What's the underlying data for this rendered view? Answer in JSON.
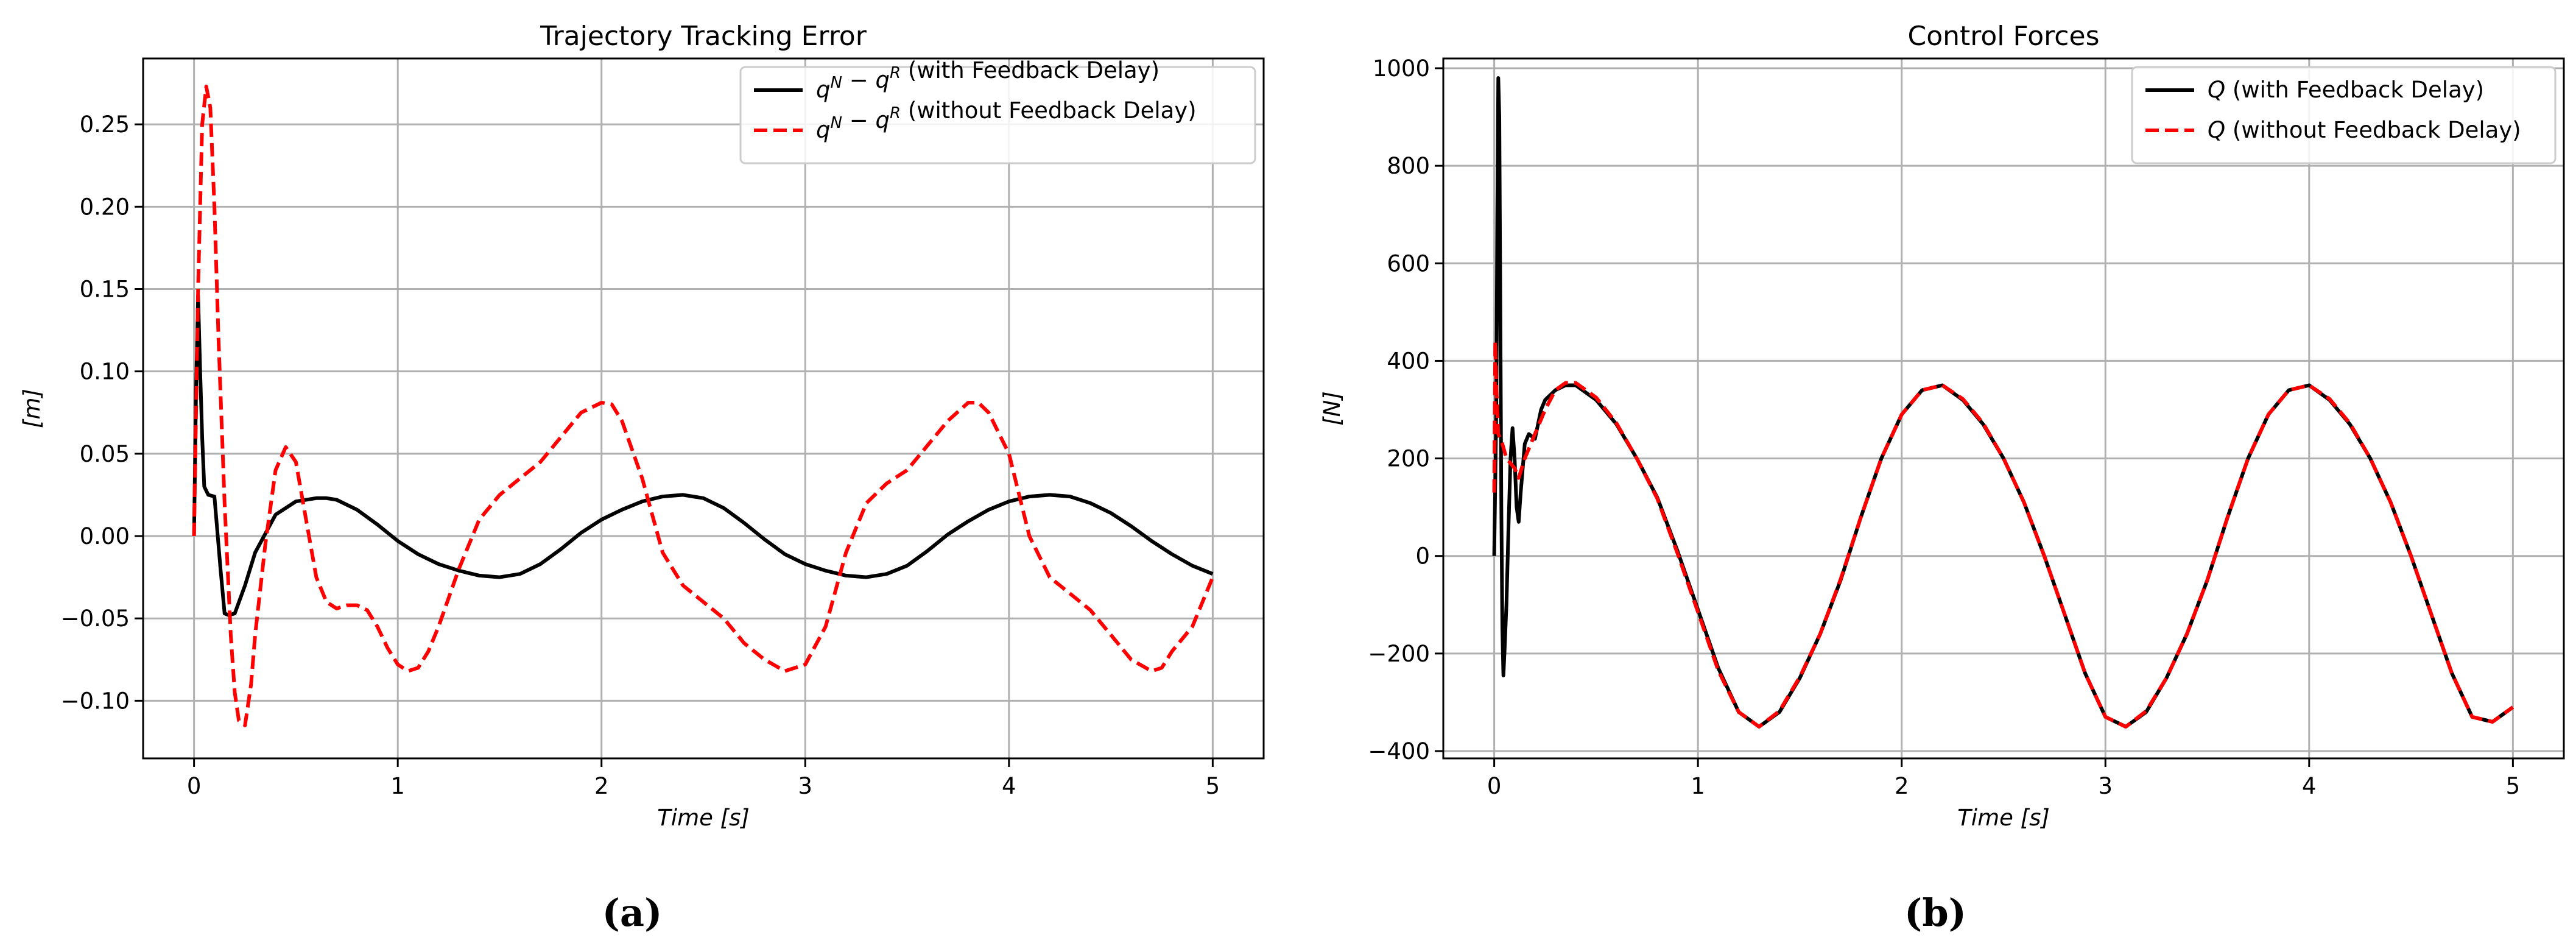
{
  "chart_data": [
    {
      "type": "line",
      "title": "Trajectory Tracking Error",
      "xlabel": "Time [s]",
      "ylabel": "[m]",
      "xlim": [
        -0.25,
        5.25
      ],
      "ylim": [
        -0.135,
        0.29
      ],
      "x_ticks": [
        0,
        1,
        2,
        3,
        4,
        5
      ],
      "x_tick_labels": [
        "0",
        "1",
        "2",
        "3",
        "4",
        "5"
      ],
      "y_ticks": [
        -0.1,
        -0.05,
        0.0,
        0.05,
        0.1,
        0.15,
        0.2,
        0.25
      ],
      "y_tick_labels": [
        "−0.10",
        "−0.05",
        "0.00",
        "0.05",
        "0.10",
        "0.15",
        "0.20",
        "0.25"
      ],
      "grid": true,
      "legend_position": "top-right",
      "caption": "(a)",
      "series": [
        {
          "name": "q^N − q^R (with Feedback Delay)",
          "legend": {
            "q": "q",
            "sup1": "N",
            "minus": " − ",
            "sup2": "R",
            "rest": " (with Feedback Delay)"
          },
          "color": "#000000",
          "dash": "solid",
          "x": [
            0,
            0.01,
            0.02,
            0.03,
            0.04,
            0.05,
            0.07,
            0.1,
            0.13,
            0.15,
            0.17,
            0.2,
            0.25,
            0.3,
            0.4,
            0.5,
            0.6,
            0.65,
            0.7,
            0.8,
            0.9,
            1.0,
            1.1,
            1.2,
            1.3,
            1.4,
            1.5,
            1.6,
            1.7,
            1.8,
            1.9,
            2.0,
            2.1,
            2.2,
            2.3,
            2.4,
            2.5,
            2.6,
            2.7,
            2.8,
            2.9,
            3.0,
            3.1,
            3.2,
            3.3,
            3.4,
            3.5,
            3.6,
            3.7,
            3.8,
            3.9,
            4.0,
            4.1,
            4.2,
            4.3,
            4.4,
            4.5,
            4.6,
            4.7,
            4.8,
            4.9,
            5.0
          ],
          "y": [
            0.0,
            0.09,
            0.146,
            0.1,
            0.06,
            0.03,
            0.025,
            0.024,
            -0.02,
            -0.047,
            -0.048,
            -0.047,
            -0.03,
            -0.01,
            0.013,
            0.021,
            0.023,
            0.023,
            0.022,
            0.016,
            0.007,
            -0.003,
            -0.011,
            -0.017,
            -0.021,
            -0.024,
            -0.025,
            -0.023,
            -0.017,
            -0.008,
            0.002,
            0.01,
            0.016,
            0.021,
            0.024,
            0.025,
            0.023,
            0.017,
            0.008,
            -0.002,
            -0.011,
            -0.017,
            -0.021,
            -0.024,
            -0.025,
            -0.023,
            -0.018,
            -0.009,
            0.001,
            0.009,
            0.016,
            0.021,
            0.024,
            0.025,
            0.024,
            0.02,
            0.014,
            0.006,
            -0.003,
            -0.011,
            -0.018,
            -0.023
          ]
        },
        {
          "name": "q^N − q^R (without Feedback Delay)",
          "legend": {
            "q": "q",
            "sup1": "N",
            "minus": " − ",
            "sup2": "R",
            "rest": " (without Feedback Delay)"
          },
          "color": "#ff0000",
          "dash": "dashed",
          "x": [
            0,
            0.02,
            0.04,
            0.06,
            0.08,
            0.1,
            0.12,
            0.15,
            0.18,
            0.2,
            0.22,
            0.25,
            0.28,
            0.3,
            0.35,
            0.4,
            0.45,
            0.5,
            0.55,
            0.6,
            0.65,
            0.7,
            0.75,
            0.8,
            0.85,
            0.9,
            0.95,
            1.0,
            1.05,
            1.1,
            1.15,
            1.2,
            1.3,
            1.4,
            1.5,
            1.6,
            1.7,
            1.8,
            1.9,
            2.0,
            2.05,
            2.1,
            2.2,
            2.3,
            2.4,
            2.5,
            2.6,
            2.7,
            2.8,
            2.9,
            3.0,
            3.1,
            3.2,
            3.3,
            3.4,
            3.5,
            3.6,
            3.7,
            3.8,
            3.85,
            3.9,
            4.0,
            4.1,
            4.2,
            4.3,
            4.4,
            4.5,
            4.6,
            4.7,
            4.75,
            4.8,
            4.9,
            5.0
          ],
          "y": [
            0.0,
            0.15,
            0.25,
            0.273,
            0.26,
            0.2,
            0.12,
            0.02,
            -0.06,
            -0.095,
            -0.112,
            -0.115,
            -0.09,
            -0.06,
            -0.005,
            0.04,
            0.054,
            0.045,
            0.01,
            -0.025,
            -0.04,
            -0.044,
            -0.042,
            -0.042,
            -0.045,
            -0.055,
            -0.068,
            -0.078,
            -0.082,
            -0.08,
            -0.07,
            -0.055,
            -0.02,
            0.01,
            0.025,
            0.035,
            0.045,
            0.06,
            0.075,
            0.081,
            0.08,
            0.07,
            0.035,
            -0.01,
            -0.03,
            -0.04,
            -0.05,
            -0.065,
            -0.075,
            -0.082,
            -0.078,
            -0.055,
            -0.01,
            0.02,
            0.032,
            0.04,
            0.055,
            0.07,
            0.081,
            0.081,
            0.075,
            0.05,
            0.0,
            -0.025,
            -0.035,
            -0.045,
            -0.06,
            -0.075,
            -0.082,
            -0.08,
            -0.07,
            -0.055,
            -0.025
          ]
        }
      ]
    },
    {
      "type": "line",
      "title": "Control Forces",
      "xlabel": "Time [s]",
      "ylabel": "[N]",
      "xlim": [
        -0.25,
        5.25
      ],
      "ylim": [
        -415,
        1020
      ],
      "x_ticks": [
        0,
        1,
        2,
        3,
        4,
        5
      ],
      "x_tick_labels": [
        "0",
        "1",
        "2",
        "3",
        "4",
        "5"
      ],
      "y_ticks": [
        -400,
        -200,
        0,
        200,
        400,
        600,
        800,
        1000
      ],
      "y_tick_labels": [
        "−400",
        "−200",
        "0",
        "200",
        "400",
        "600",
        "800",
        "1000"
      ],
      "grid": true,
      "legend_position": "top-right",
      "caption": "(b)",
      "series": [
        {
          "name": "Q (with Feedback Delay)",
          "legend": {
            "q": "Q",
            "sup1": "",
            "minus": "",
            "sup2": "",
            "rest": " (with Feedback Delay)"
          },
          "color": "#000000",
          "dash": "solid",
          "x": [
            0,
            0.01,
            0.015,
            0.02,
            0.025,
            0.03,
            0.035,
            0.04,
            0.045,
            0.05,
            0.06,
            0.07,
            0.08,
            0.09,
            0.1,
            0.11,
            0.12,
            0.13,
            0.15,
            0.17,
            0.2,
            0.23,
            0.25,
            0.3,
            0.35,
            0.4,
            0.5,
            0.6,
            0.7,
            0.8,
            0.9,
            1.0,
            1.1,
            1.2,
            1.3,
            1.4,
            1.5,
            1.6,
            1.7,
            1.8,
            1.9,
            2.0,
            2.1,
            2.2,
            2.3,
            2.4,
            2.5,
            2.6,
            2.7,
            2.8,
            2.9,
            3.0,
            3.1,
            3.2,
            3.3,
            3.4,
            3.5,
            3.6,
            3.7,
            3.8,
            3.9,
            4.0,
            4.1,
            4.2,
            4.3,
            4.4,
            4.5,
            4.6,
            4.7,
            4.8,
            4.9,
            5.0
          ],
          "y": [
            0,
            300,
            700,
            980,
            900,
            500,
            100,
            -150,
            -245,
            -200,
            -100,
            60,
            200,
            262,
            200,
            100,
            70,
            130,
            230,
            250,
            240,
            300,
            320,
            340,
            350,
            350,
            320,
            270,
            200,
            120,
            10,
            -110,
            -230,
            -320,
            -350,
            -320,
            -250,
            -160,
            -50,
            80,
            200,
            290,
            340,
            350,
            320,
            270,
            200,
            110,
            0,
            -120,
            -240,
            -330,
            -350,
            -320,
            -250,
            -160,
            -50,
            80,
            200,
            290,
            340,
            350,
            320,
            270,
            200,
            110,
            0,
            -120,
            -240,
            -330,
            -340,
            -310
          ]
        },
        {
          "name": "Q (without Feedback Delay)",
          "legend": {
            "q": "Q",
            "sup1": "",
            "minus": "",
            "sup2": "",
            "rest": " (without Feedback Delay)"
          },
          "color": "#ff0000",
          "dash": "dashed",
          "x": [
            0,
            0.005,
            0.01,
            0.02,
            0.04,
            0.06,
            0.08,
            0.1,
            0.12,
            0.15,
            0.2,
            0.25,
            0.3,
            0.35,
            0.4,
            0.5,
            0.6,
            0.7,
            0.8,
            0.9,
            1.0,
            1.1,
            1.2,
            1.3,
            1.4,
            1.5,
            1.6,
            1.7,
            1.8,
            1.9,
            2.0,
            2.1,
            2.2,
            2.3,
            2.4,
            2.5,
            2.6,
            2.7,
            2.8,
            2.9,
            3.0,
            3.1,
            3.2,
            3.3,
            3.4,
            3.5,
            3.6,
            3.7,
            3.8,
            3.9,
            4.0,
            4.1,
            4.2,
            4.3,
            4.4,
            4.5,
            4.6,
            4.7,
            4.8,
            4.9,
            5.0
          ],
          "y": [
            130,
            440,
            350,
            250,
            230,
            200,
            190,
            180,
            160,
            200,
            250,
            300,
            340,
            355,
            355,
            325,
            272,
            200,
            118,
            5,
            -115,
            -235,
            -320,
            -350,
            -318,
            -248,
            -160,
            -48,
            80,
            200,
            290,
            340,
            350,
            322,
            272,
            200,
            110,
            0,
            -120,
            -240,
            -330,
            -350,
            -318,
            -250,
            -160,
            -50,
            80,
            200,
            290,
            340,
            350,
            322,
            272,
            200,
            110,
            0,
            -120,
            -240,
            -330,
            -340,
            -310
          ]
        }
      ]
    }
  ]
}
